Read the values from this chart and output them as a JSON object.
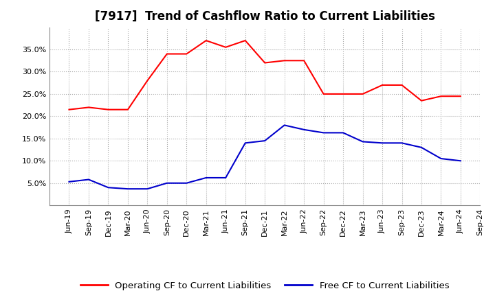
{
  "title": "[7917]  Trend of Cashflow Ratio to Current Liabilities",
  "x_labels": [
    "Jun-19",
    "Sep-19",
    "Dec-19",
    "Mar-20",
    "Jun-20",
    "Sep-20",
    "Dec-20",
    "Mar-21",
    "Jun-21",
    "Sep-21",
    "Dec-21",
    "Mar-22",
    "Jun-22",
    "Sep-22",
    "Dec-22",
    "Mar-23",
    "Jun-23",
    "Sep-23",
    "Dec-23",
    "Mar-24",
    "Jun-24",
    "Sep-24"
  ],
  "operating_cf": [
    21.5,
    22.0,
    21.5,
    21.5,
    28.0,
    34.0,
    34.0,
    37.0,
    35.5,
    37.0,
    32.0,
    32.5,
    32.5,
    25.0,
    25.0,
    25.0,
    27.0,
    27.0,
    23.5,
    24.5,
    24.5,
    null
  ],
  "free_cf": [
    5.3,
    5.8,
    4.0,
    3.7,
    3.7,
    5.0,
    5.0,
    6.2,
    6.2,
    14.0,
    14.5,
    18.0,
    17.0,
    16.3,
    16.3,
    14.3,
    14.0,
    14.0,
    13.0,
    10.5,
    10.0,
    null
  ],
  "operating_color": "#FF0000",
  "free_color": "#0000CC",
  "ylim": [
    0,
    40
  ],
  "yticks": [
    5.0,
    10.0,
    15.0,
    20.0,
    25.0,
    30.0,
    35.0
  ],
  "background_color": "#FFFFFF",
  "grid_color": "#AAAAAA",
  "title_fontsize": 12,
  "legend_fontsize": 9.5,
  "tick_fontsize": 8
}
